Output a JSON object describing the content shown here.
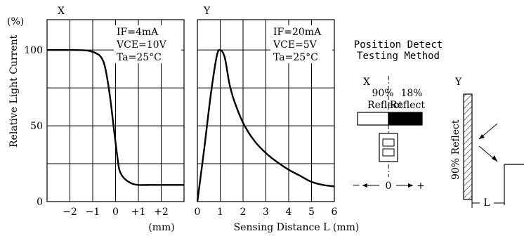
{
  "chart_data": [
    {
      "type": "line",
      "panel_label": "X",
      "y_unit_label": "(%)",
      "ylabel": "Relative Light Current",
      "xlabel": "(mm)",
      "xlim": [
        -3,
        3
      ],
      "ylim": [
        0,
        120
      ],
      "x_ticks": [
        -2,
        -1,
        0,
        1,
        2
      ],
      "x_tick_labels": [
        "−2",
        "−1",
        "0",
        "+1",
        "+2"
      ],
      "y_ticks": [
        0,
        50,
        100
      ],
      "y_tick_labels": [
        "0",
        "50",
        "100"
      ],
      "conditions": [
        "IF=4mA",
        "VCE=10V",
        "Ta=25°C"
      ],
      "grid": true,
      "series": [
        {
          "x": [
            -3,
            -2,
            -1.2,
            -0.75,
            -0.55,
            -0.45,
            -0.35,
            -0.25,
            -0.15,
            -0.05,
            0.05,
            0.15,
            0.25,
            0.4,
            0.7,
            1.0,
            1.5,
            2.0,
            3.0
          ],
          "y": [
            100,
            100,
            99.5,
            97,
            93,
            88,
            80,
            70,
            58,
            45,
            33,
            22,
            18,
            15,
            12,
            11,
            11,
            11,
            11
          ]
        }
      ]
    },
    {
      "type": "line",
      "panel_label": "Y",
      "xlabel": "Sensing Distance  L  (mm)",
      "xlim": [
        0,
        6
      ],
      "ylim": [
        0,
        120
      ],
      "x_ticks": [
        0,
        1,
        2,
        3,
        4,
        5,
        6
      ],
      "x_tick_labels": [
        "0",
        "1",
        "2",
        "3",
        "4",
        "5",
        "6"
      ],
      "conditions": [
        "IF=20mA",
        "VCE=5V",
        "Ta=25°C"
      ],
      "grid": true,
      "series": [
        {
          "x": [
            0,
            0.3,
            0.6,
            0.85,
            1.0,
            1.2,
            1.4,
            1.6,
            2.0,
            2.5,
            3.0,
            3.5,
            4.0,
            4.5,
            5.0,
            5.5,
            6.0
          ],
          "y": [
            0,
            35,
            72,
            96,
            100,
            95,
            78,
            67,
            52,
            40,
            32,
            26,
            21,
            17,
            13,
            11,
            10
          ]
        }
      ]
    }
  ],
  "method": {
    "title_line1": "Position Detect",
    "title_line2": "Testing Method",
    "x_label": "X",
    "y_label": "Y",
    "left_pct": "90%",
    "left_word": "Reflect",
    "right_pct": "18%",
    "right_word": "Reflect",
    "scale_minus": "−",
    "scale_zero": "0",
    "scale_plus": "+",
    "y_reflect": "90% Reflect",
    "y_distance": "L"
  }
}
